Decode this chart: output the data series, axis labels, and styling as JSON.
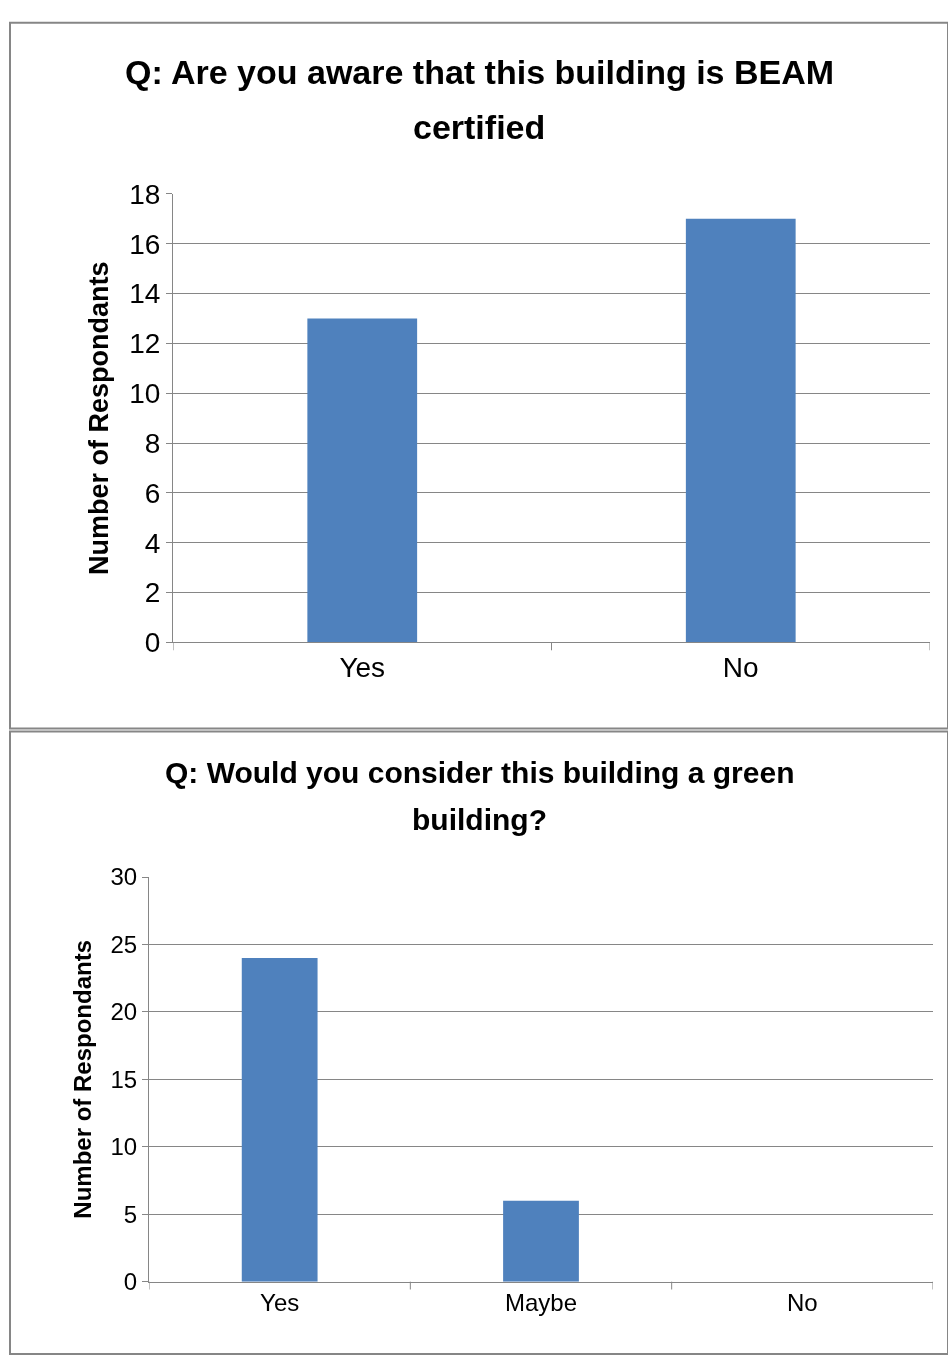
{
  "chart_data": [
    {
      "type": "bar",
      "title": "Q: Are you aware that this building is BEAM certified",
      "ylabel": "Number of Respondants",
      "categories": [
        "Yes",
        "No"
      ],
      "values": [
        13,
        17
      ],
      "color": "#4f81bd",
      "ylim": [
        0,
        18
      ],
      "yticks": [
        0,
        2,
        4,
        6,
        8,
        10,
        12,
        14,
        16,
        18
      ],
      "grid": "y",
      "legend": false
    },
    {
      "type": "bar",
      "title": "Q: Would you consider this building a green building?",
      "ylabel": "Number of Respondants",
      "categories": [
        "Yes",
        "Maybe",
        "No"
      ],
      "values": [
        24,
        6,
        0
      ],
      "color": "#4f81bd",
      "ylim": [
        0,
        30
      ],
      "yticks": [
        0,
        5,
        10,
        15,
        20,
        25,
        30
      ],
      "grid": "y",
      "legend": false
    }
  ]
}
